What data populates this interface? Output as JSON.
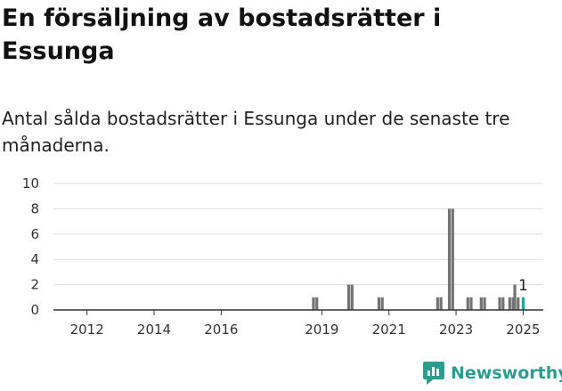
{
  "title": "En försäljning av bostadsrätter i Essunga",
  "subtitle": "Antal sålda bostadsrätter i Essunga under de senaste tre månaderna.",
  "brand": {
    "name": "Newsworthy",
    "icon": "newsworthy-logo-icon"
  },
  "colors": {
    "bar": "#737373",
    "highlight": "#1fa7a0",
    "grid": "#dddddd",
    "axis": "#333333"
  },
  "chart_data": {
    "type": "bar",
    "title": "",
    "xlabel": "",
    "ylabel": "",
    "ylim": [
      0,
      10
    ],
    "yticks": [
      0,
      2,
      4,
      6,
      8,
      10
    ],
    "xlim": [
      2011.0,
      2025.6
    ],
    "xticks": [
      "2012",
      "2014",
      "2016",
      "2019",
      "2021",
      "2023",
      "2025"
    ],
    "grid": true,
    "legend": "none",
    "bars": [
      {
        "x": 2018.75,
        "value": 1
      },
      {
        "x": 2018.85,
        "value": 1
      },
      {
        "x": 2019.8,
        "value": 2
      },
      {
        "x": 2019.9,
        "value": 2
      },
      {
        "x": 2020.7,
        "value": 1
      },
      {
        "x": 2020.8,
        "value": 1
      },
      {
        "x": 2022.45,
        "value": 1
      },
      {
        "x": 2022.55,
        "value": 1
      },
      {
        "x": 2022.8,
        "value": 8
      },
      {
        "x": 2022.9,
        "value": 8
      },
      {
        "x": 2023.35,
        "value": 1
      },
      {
        "x": 2023.45,
        "value": 1
      },
      {
        "x": 2023.75,
        "value": 1
      },
      {
        "x": 2023.85,
        "value": 1
      },
      {
        "x": 2024.3,
        "value": 1
      },
      {
        "x": 2024.4,
        "value": 1
      },
      {
        "x": 2024.6,
        "value": 1
      },
      {
        "x": 2024.7,
        "value": 1
      },
      {
        "x": 2024.75,
        "value": 2
      },
      {
        "x": 2024.85,
        "value": 1
      },
      {
        "x": 2025.0,
        "value": 1,
        "highlight": true,
        "label": "1"
      }
    ]
  }
}
